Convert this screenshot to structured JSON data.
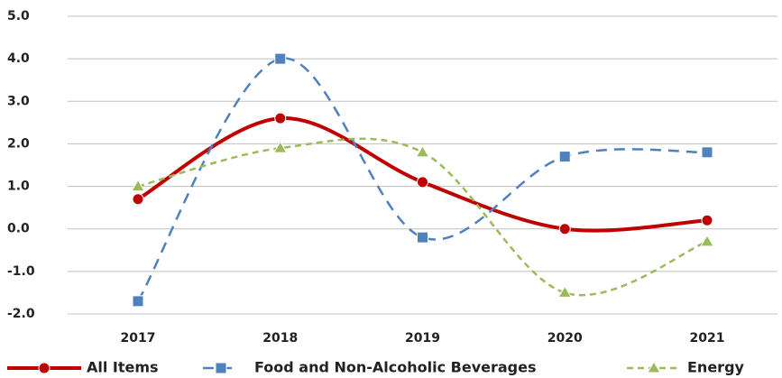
{
  "chart_data": {
    "type": "line",
    "categories": [
      "2017",
      "2018",
      "2019",
      "2020",
      "2021"
    ],
    "series": [
      {
        "name": "All Items",
        "color": "#c00000",
        "values": [
          0.7,
          2.6,
          1.1,
          0.0,
          0.2
        ]
      },
      {
        "name": "Food and Non-Alcoholic Beverages",
        "color": "#4f81bd",
        "values": [
          -1.7,
          4.0,
          -0.2,
          1.7,
          1.8
        ]
      },
      {
        "name": "Energy",
        "color": "#9bbb59",
        "values": [
          1.0,
          1.9,
          1.8,
          -1.5,
          -0.3
        ]
      }
    ],
    "ylim": [
      -2,
      5
    ],
    "yticks": [
      {
        "value": -2,
        "label": "-2.0"
      },
      {
        "value": -1,
        "label": "-1.0"
      },
      {
        "value": 0,
        "label": "0.0"
      },
      {
        "value": 1,
        "label": "1.0"
      },
      {
        "value": 2,
        "label": "2.0"
      },
      {
        "value": 3,
        "label": "3.0"
      },
      {
        "value": 4,
        "label": "4.0"
      },
      {
        "value": 5,
        "label": "5.0"
      }
    ],
    "grid": true,
    "legend": "bottom"
  }
}
